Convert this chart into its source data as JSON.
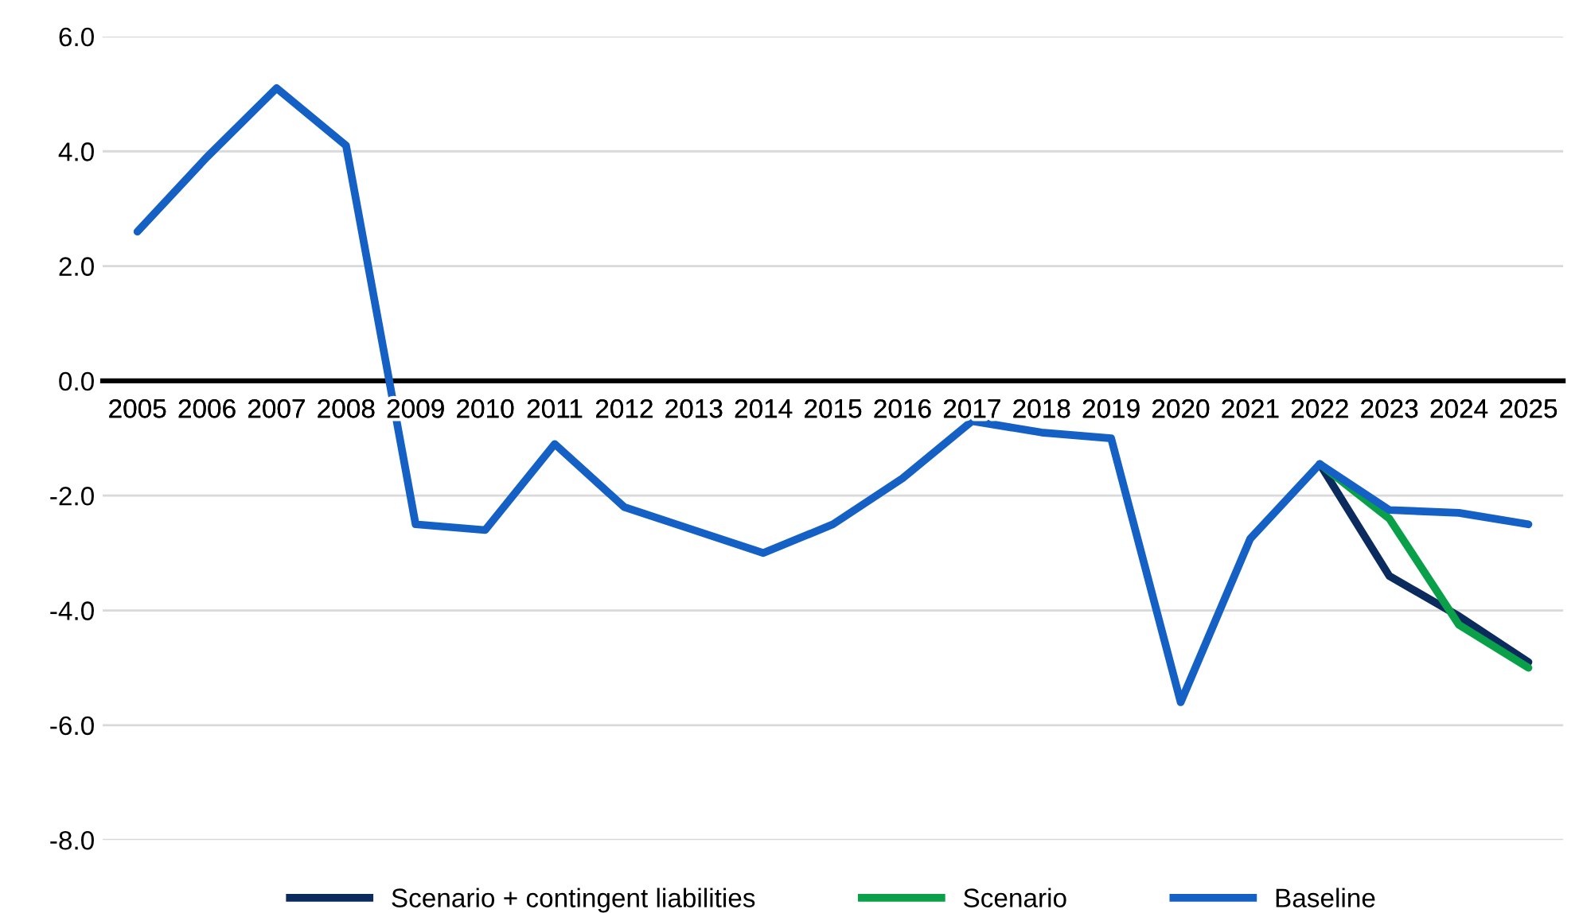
{
  "chart_data": {
    "type": "line",
    "categories": [
      "2005",
      "2006",
      "2007",
      "2008",
      "2009",
      "2010",
      "2011",
      "2012",
      "2013",
      "2014",
      "2015",
      "2016",
      "2017",
      "2018",
      "2019",
      "2020",
      "2021",
      "2022",
      "2023",
      "2024",
      "2025"
    ],
    "series": [
      {
        "name": "Scenario + contingent liabilities",
        "color": "#0b2a5e",
        "values": [
          null,
          null,
          null,
          null,
          null,
          null,
          null,
          null,
          null,
          null,
          null,
          null,
          null,
          null,
          null,
          null,
          null,
          -1.45,
          -3.4,
          -4.1,
          -4.9
        ]
      },
      {
        "name": "Scenario",
        "color": "#0aa04a",
        "values": [
          null,
          null,
          null,
          null,
          null,
          null,
          null,
          null,
          null,
          null,
          null,
          null,
          null,
          null,
          null,
          null,
          null,
          -1.45,
          -2.4,
          -4.25,
          -5.0
        ]
      },
      {
        "name": "Baseline",
        "color": "#1560c4",
        "values": [
          2.6,
          3.9,
          5.1,
          4.1,
          -2.5,
          -2.6,
          -1.1,
          -2.2,
          -2.6,
          -3.0,
          -2.5,
          -1.7,
          -0.7,
          -0.9,
          -1.0,
          -5.6,
          -2.75,
          -1.45,
          -2.25,
          -2.3,
          -2.5
        ]
      }
    ],
    "ylim": [
      -8,
      6
    ],
    "yticks": [
      {
        "value": 6,
        "label": "6.0"
      },
      {
        "value": 4,
        "label": "4.0"
      },
      {
        "value": 2,
        "label": "2.0"
      },
      {
        "value": 0,
        "label": "0.0"
      },
      {
        "value": -2,
        "label": "-2.0"
      },
      {
        "value": -4,
        "label": "-4.0"
      },
      {
        "value": -6,
        "label": "-6.0"
      },
      {
        "value": -8,
        "label": "-8.0"
      }
    ],
    "grid": "y",
    "legend": "bottom",
    "marker": "none",
    "line_style": "solid"
  }
}
